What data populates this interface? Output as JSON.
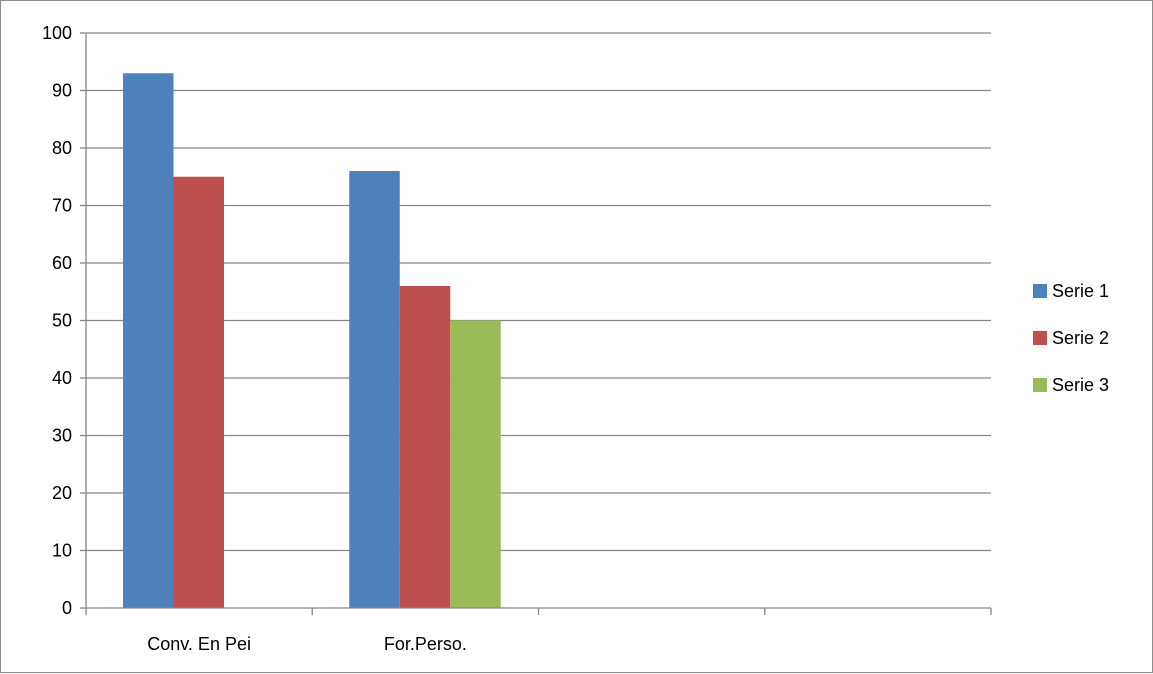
{
  "chart_data": {
    "type": "bar",
    "categories": [
      "Conv. En Pei",
      "For.Perso.",
      "",
      ""
    ],
    "series": [
      {
        "name": "Serie 1",
        "color": "#4F81BD",
        "values": [
          93,
          76,
          null,
          null
        ]
      },
      {
        "name": "Serie 2",
        "color": "#C0504D",
        "values": [
          75,
          56,
          null,
          null
        ]
      },
      {
        "name": "Serie 3",
        "color": "#9BBB59",
        "values": [
          null,
          50,
          null,
          null
        ]
      }
    ],
    "ylim": [
      0,
      100
    ],
    "yticks": [
      "0",
      "10",
      "20",
      "30",
      "40",
      "50",
      "60",
      "70",
      "80",
      "90",
      "100"
    ],
    "grid": true,
    "legend": "right",
    "gridline_color": "#868686",
    "axis_color": "#868686"
  }
}
